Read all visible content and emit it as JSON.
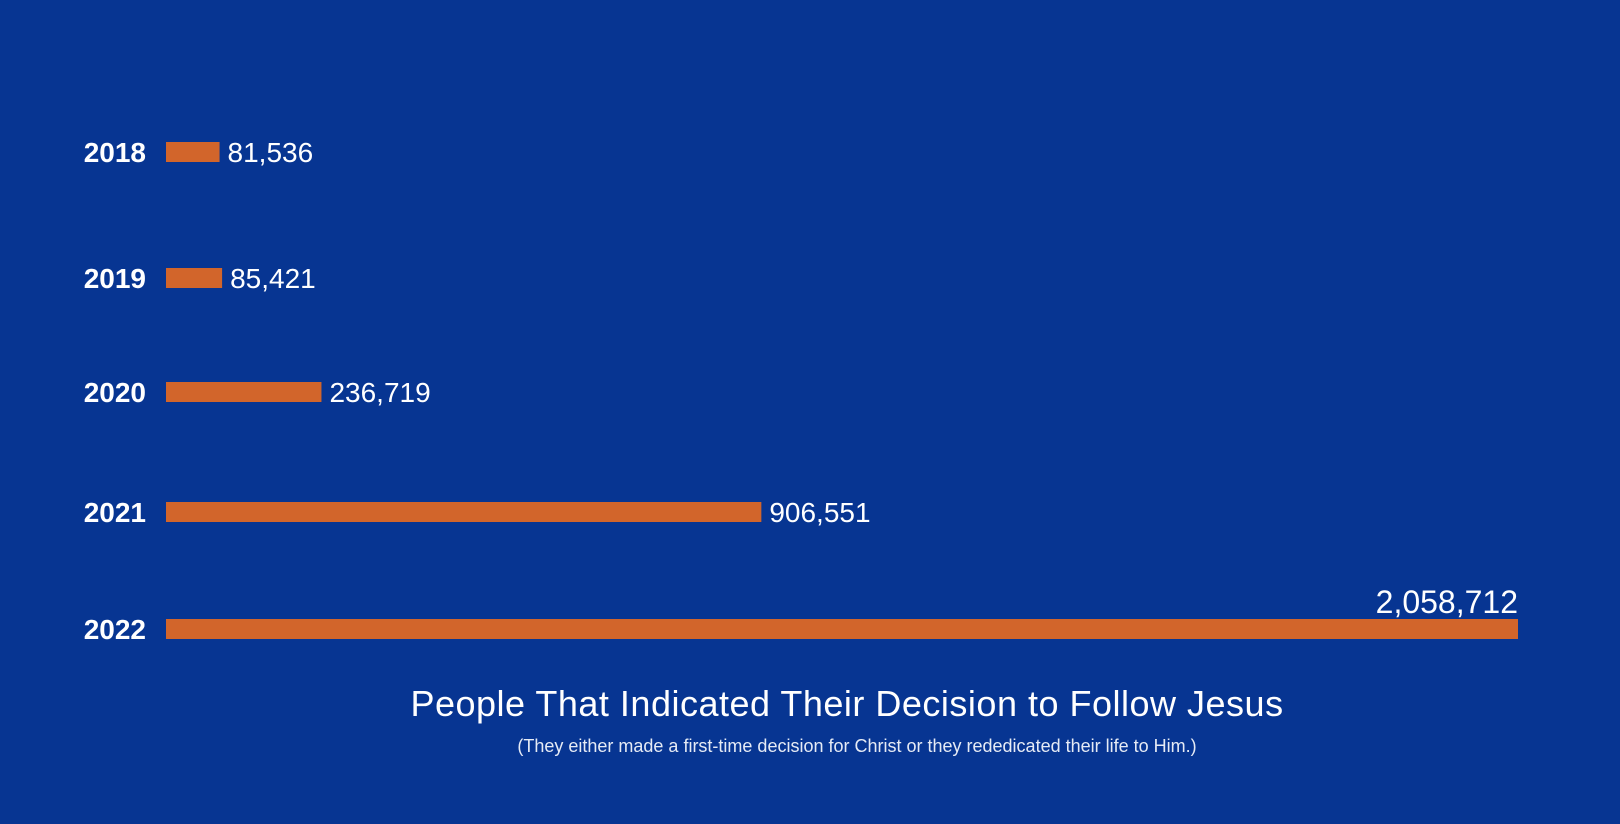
{
  "colors": {
    "background": "#073592",
    "bar": "#d2652b",
    "text": "#ffffff"
  },
  "chart_data": {
    "type": "bar",
    "orientation": "horizontal",
    "title": "People That Indicated Their Decision to Follow Jesus",
    "subtitle": "(They either made a first-time decision for Christ or they rededicated their life to Him.)",
    "categories": [
      "2018",
      "2019",
      "2020",
      "2021",
      "2022"
    ],
    "values": [
      81536,
      85421,
      236719,
      906551,
      2058712
    ],
    "value_labels": [
      "81,536",
      "85,421",
      "236,719",
      "906,551",
      "2,058,712"
    ],
    "xlim": [
      0,
      2058712
    ],
    "grid": false,
    "legend": "none"
  }
}
